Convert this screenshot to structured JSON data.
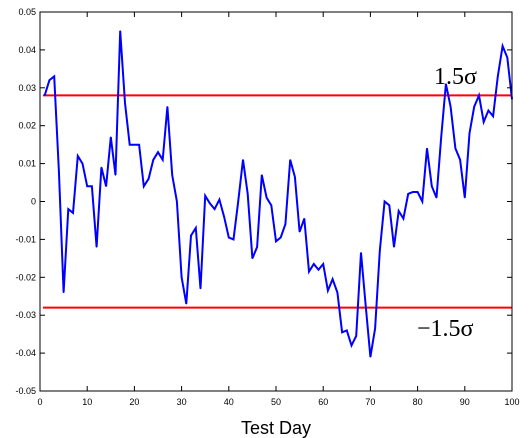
{
  "chart_data": {
    "type": "line",
    "title": "",
    "xlabel": "Test Day",
    "ylabel": "",
    "xlim": [
      0,
      100
    ],
    "ylim": [
      -0.05,
      0.05
    ],
    "xticks": [
      0,
      10,
      20,
      30,
      40,
      50,
      60,
      70,
      80,
      90,
      100
    ],
    "yticks": [
      -0.05,
      -0.04,
      -0.03,
      -0.02,
      -0.01,
      0,
      0.01,
      0.02,
      0.03,
      0.04,
      0.05
    ],
    "xtick_labels": [
      "0",
      "10",
      "20",
      "30",
      "40",
      "50",
      "60",
      "70",
      "80",
      "90",
      "100"
    ],
    "ytick_labels": [
      "-0.05",
      "-0.04",
      "-0.03",
      "-0.02",
      "-0.01",
      "0",
      "0.01",
      "0.02",
      "0.03",
      "0.04",
      "0.05"
    ],
    "grid": false,
    "series": [
      {
        "color": "#0000ff",
        "x": [
          1,
          2,
          3,
          4,
          5,
          6,
          7,
          8,
          9,
          10,
          11,
          12,
          13,
          14,
          15,
          16,
          17,
          18,
          19,
          20,
          21,
          22,
          23,
          24,
          25,
          26,
          27,
          28,
          29,
          30,
          31,
          32,
          33,
          34,
          35,
          36,
          37,
          38,
          39,
          40,
          41,
          42,
          43,
          44,
          45,
          46,
          47,
          48,
          49,
          50,
          51,
          52,
          53,
          54,
          55,
          56,
          57,
          58,
          59,
          60,
          61,
          62,
          63,
          64,
          65,
          66,
          67,
          68,
          69,
          70,
          71,
          72,
          73,
          74,
          75,
          76,
          77,
          78,
          79,
          80,
          81,
          82,
          83,
          84,
          85,
          86,
          87,
          88,
          89,
          90,
          91,
          92,
          93,
          94,
          95,
          96,
          97,
          98,
          99,
          100
        ],
        "values": [
          0.028,
          0.032,
          0.033,
          0.008,
          -0.024,
          -0.002,
          -0.003,
          0.012,
          0.01,
          0.004,
          0.004,
          -0.012,
          0.009,
          0.004,
          0.017,
          0.007,
          0.045,
          0.026,
          0.015,
          0.015,
          0.015,
          0.004,
          0.006,
          0.011,
          0.013,
          0.011,
          0.025,
          0.007,
          0.0,
          -0.02,
          -0.027,
          -0.009,
          -0.007,
          -0.023,
          0.0015,
          -0.0005,
          -0.002,
          0.0005,
          -0.004,
          -0.0095,
          -0.01,
          0.0,
          0.011,
          0.002,
          -0.015,
          -0.012,
          0.007,
          0.001,
          -0.001,
          -0.0105,
          -0.0095,
          -0.006,
          0.011,
          0.0065,
          -0.008,
          -0.0045,
          -0.0185,
          -0.0165,
          -0.018,
          -0.0165,
          -0.0235,
          -0.0205,
          -0.024,
          -0.0345,
          -0.034,
          -0.038,
          -0.0355,
          -0.0135,
          -0.0275,
          -0.041,
          -0.0335,
          -0.013,
          0.0,
          -0.001,
          -0.012,
          -0.0025,
          -0.0045,
          0.002,
          0.0025,
          0.0025,
          0.0,
          0.014,
          0.004,
          0.001,
          0.017,
          0.031,
          0.025,
          0.014,
          0.011,
          0.001,
          0.018,
          0.025,
          0.028,
          0.021,
          0.024,
          0.0225,
          0.033,
          0.041,
          0.038,
          0.027
        ]
      }
    ],
    "reference_lines": [
      {
        "y": 0.028,
        "color": "#ff0000",
        "label": "1.5σ"
      },
      {
        "y": -0.028,
        "color": "#ff0000",
        "label": "−1.5σ"
      }
    ]
  }
}
